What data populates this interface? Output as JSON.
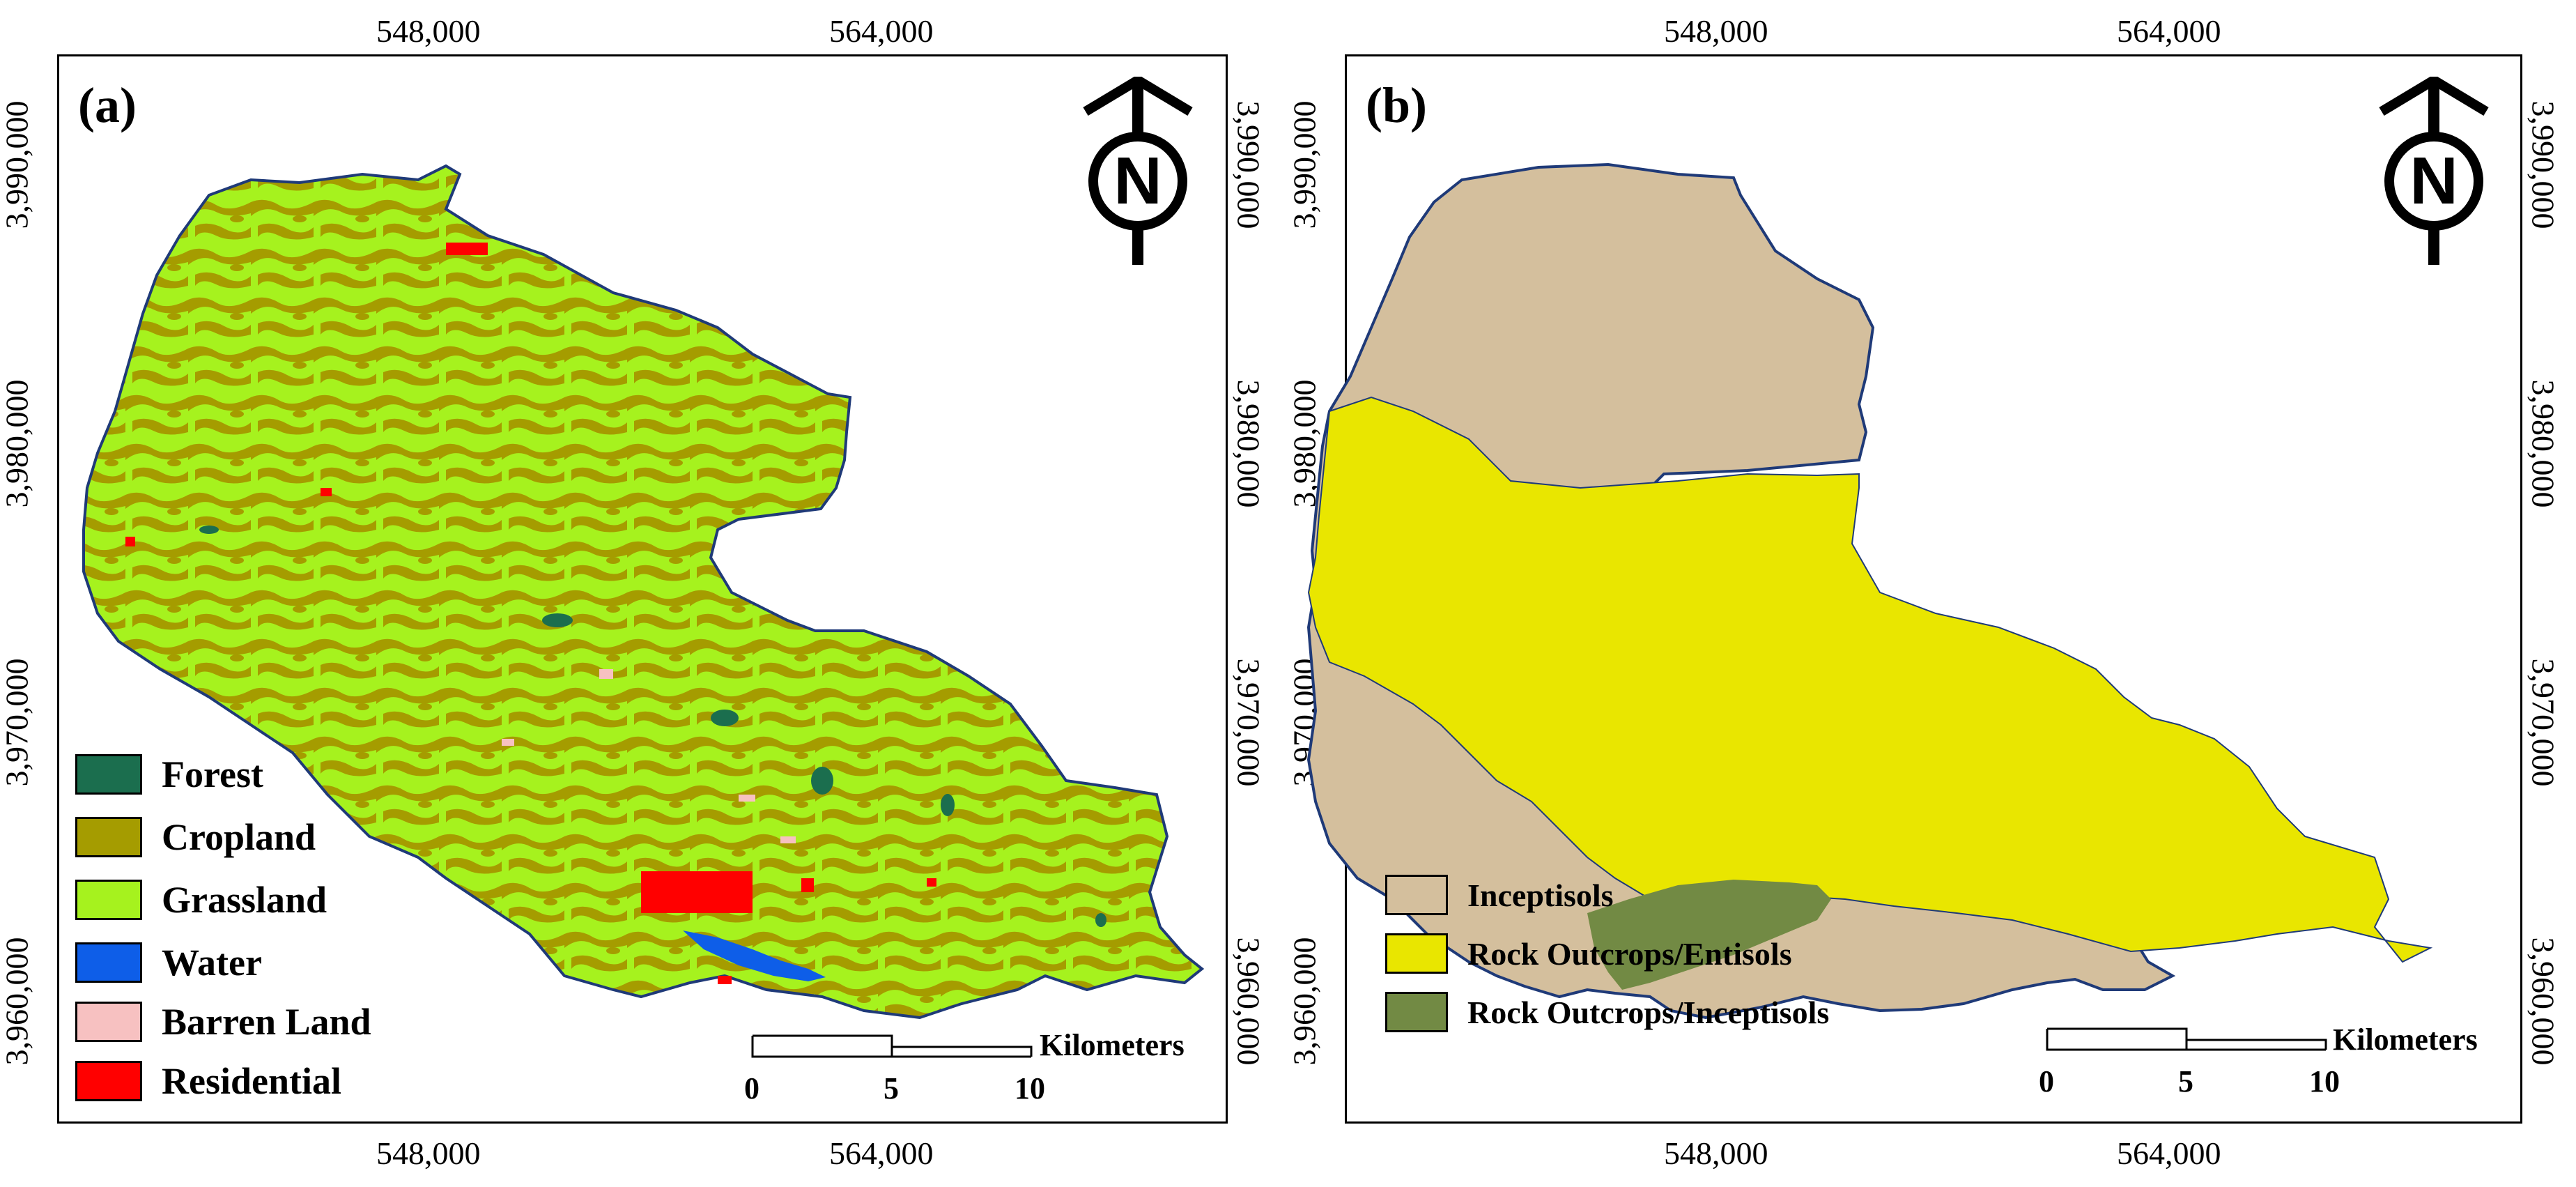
{
  "axes": {
    "x_ticks": [
      "548,000",
      "564,000"
    ],
    "y_ticks": [
      "3,990,000",
      "3,980,000",
      "3,970,000",
      "3,960,000"
    ]
  },
  "panel_a": {
    "label": "(a)",
    "north_letter": "N",
    "legend": [
      {
        "label": "Forest",
        "color": "#1b6e4e"
      },
      {
        "label": "Cropland",
        "color": "#a59c00"
      },
      {
        "label": "Grassland",
        "color": "#a6f21e"
      },
      {
        "label": "Water",
        "color": "#0e5ee8"
      },
      {
        "label": "Barren Land",
        "color": "#f7c1c1"
      },
      {
        "label": "Residential",
        "color": "#ff0000"
      }
    ],
    "scale": {
      "unit": "Kilometers",
      "ticks": [
        "0",
        "5",
        "10"
      ]
    }
  },
  "panel_b": {
    "label": "(b)",
    "north_letter": "N",
    "legend": [
      {
        "label": "Inceptisols",
        "color": "#d4bf9d"
      },
      {
        "label": "Rock Outcrops/Entisols",
        "color": "#e9e600"
      },
      {
        "label": "Rock Outcrops/Inceptisols",
        "color": "#728a44"
      }
    ],
    "scale": {
      "unit": "Kilometers",
      "ticks": [
        "0",
        "5",
        "10"
      ]
    }
  }
}
